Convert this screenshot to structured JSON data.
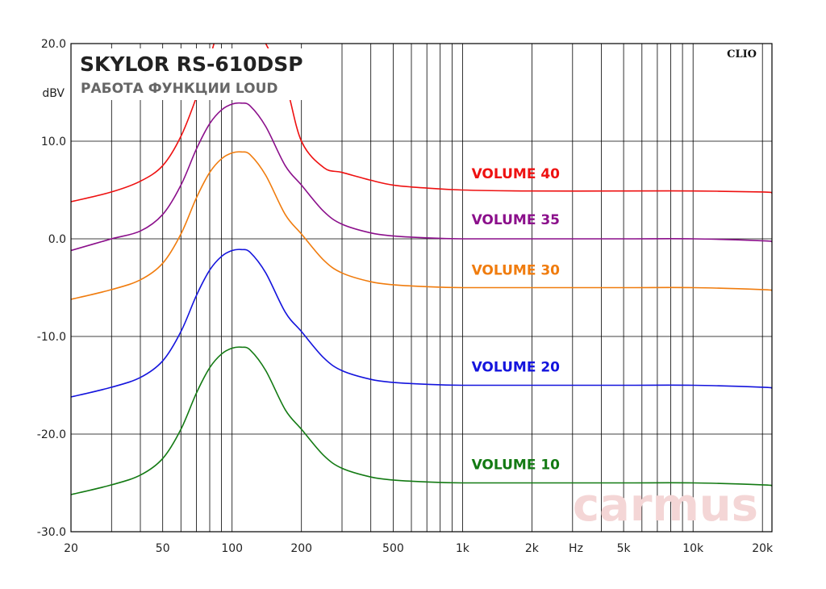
{
  "chart_data": {
    "type": "line",
    "title": "SKYLOR RS-610DSP",
    "subtitle": "РАБОТА ФУНКЦИИ LOUD",
    "badge": "CLIO",
    "watermark": "carmus",
    "ylabel": "dBV",
    "xunit_label": "Hz",
    "xscale": "log",
    "xlim": [
      20,
      22000
    ],
    "ylim": [
      -30,
      20
    ],
    "grid": true,
    "y_ticks": [
      {
        "value": 20,
        "label": "20.0"
      },
      {
        "value": 10,
        "label": "10.0"
      },
      {
        "value": 0,
        "label": "0.0"
      },
      {
        "value": -10,
        "label": "-10.0"
      },
      {
        "value": -20,
        "label": "-20.0"
      },
      {
        "value": -30,
        "label": "-30.0"
      }
    ],
    "x_ticks": [
      {
        "value": 20,
        "label": "20"
      },
      {
        "value": 50,
        "label": "50"
      },
      {
        "value": 100,
        "label": "100"
      },
      {
        "value": 200,
        "label": "200"
      },
      {
        "value": 500,
        "label": "500"
      },
      {
        "value": 1000,
        "label": "1k"
      },
      {
        "value": 2000,
        "label": "2k"
      },
      {
        "value": 5000,
        "label": "5k"
      },
      {
        "value": 10000,
        "label": "10k"
      },
      {
        "value": 20000,
        "label": "20k"
      }
    ],
    "x_minor_grid": [
      30,
      40,
      50,
      60,
      70,
      80,
      90,
      100,
      200,
      300,
      400,
      500,
      600,
      700,
      800,
      900,
      1000,
      2000,
      3000,
      4000,
      5000,
      6000,
      7000,
      8000,
      9000,
      10000,
      20000
    ],
    "series": [
      {
        "name": "VOLUME 40",
        "color": "#ee1111",
        "x": [
          20,
          30,
          40,
          50,
          60,
          70,
          80,
          90,
          100,
          110,
          120,
          140,
          170,
          200,
          250,
          300,
          400,
          500,
          700,
          1000,
          2000,
          5000,
          10000,
          20000,
          22000
        ],
        "y": [
          3.8,
          4.8,
          5.9,
          7.5,
          10.5,
          14.5,
          18.5,
          22.5,
          23.8,
          23.8,
          23.5,
          20.0,
          16.0,
          10.0,
          7.3,
          6.8,
          6.0,
          5.5,
          5.2,
          5.0,
          4.9,
          4.9,
          4.9,
          4.8,
          4.7
        ]
      },
      {
        "name": "VOLUME 35",
        "color": "#8b0f8b",
        "x": [
          20,
          30,
          40,
          50,
          60,
          70,
          80,
          90,
          100,
          110,
          120,
          140,
          170,
          200,
          250,
          300,
          400,
          500,
          700,
          1000,
          2000,
          5000,
          10000,
          20000,
          22000
        ],
        "y": [
          -1.2,
          0.0,
          0.8,
          2.5,
          5.5,
          9.2,
          11.8,
          13.2,
          13.8,
          13.9,
          13.6,
          11.5,
          7.5,
          5.5,
          2.8,
          1.5,
          0.6,
          0.3,
          0.1,
          0.0,
          0.0,
          0.0,
          0.0,
          -0.2,
          -0.3
        ]
      },
      {
        "name": "VOLUME 30",
        "color": "#f07c0e",
        "x": [
          20,
          30,
          40,
          50,
          60,
          70,
          80,
          90,
          100,
          110,
          120,
          140,
          170,
          200,
          250,
          300,
          400,
          500,
          700,
          1000,
          2000,
          5000,
          10000,
          20000,
          22000
        ],
        "y": [
          -6.2,
          -5.2,
          -4.2,
          -2.5,
          0.5,
          4.2,
          6.8,
          8.2,
          8.8,
          8.9,
          8.6,
          6.5,
          2.5,
          0.5,
          -2.2,
          -3.5,
          -4.4,
          -4.7,
          -4.9,
          -5.0,
          -5.0,
          -5.0,
          -5.0,
          -5.2,
          -5.3
        ]
      },
      {
        "name": "VOLUME 20",
        "color": "#1414dd",
        "x": [
          20,
          30,
          40,
          50,
          60,
          70,
          80,
          90,
          100,
          110,
          120,
          140,
          170,
          200,
          250,
          300,
          400,
          500,
          700,
          1000,
          2000,
          5000,
          10000,
          20000,
          22000
        ],
        "y": [
          -16.2,
          -15.2,
          -14.2,
          -12.5,
          -9.5,
          -5.8,
          -3.2,
          -1.8,
          -1.2,
          -1.1,
          -1.4,
          -3.5,
          -7.5,
          -9.5,
          -12.2,
          -13.5,
          -14.4,
          -14.7,
          -14.9,
          -15.0,
          -15.0,
          -15.0,
          -15.0,
          -15.2,
          -15.3
        ]
      },
      {
        "name": "VOLUME 10",
        "color": "#137a13",
        "x": [
          20,
          30,
          40,
          50,
          60,
          70,
          80,
          90,
          100,
          110,
          120,
          140,
          170,
          200,
          250,
          300,
          400,
          500,
          700,
          1000,
          2000,
          5000,
          10000,
          20000,
          22000
        ],
        "y": [
          -26.2,
          -25.2,
          -24.2,
          -22.5,
          -19.5,
          -15.8,
          -13.2,
          -11.8,
          -11.2,
          -11.1,
          -11.4,
          -13.5,
          -17.5,
          -19.5,
          -22.2,
          -23.5,
          -24.4,
          -24.7,
          -24.9,
          -25.0,
          -25.0,
          -25.0,
          -25.0,
          -25.2,
          -25.3
        ]
      }
    ],
    "series_labels": [
      {
        "text": "VOLUME 40",
        "color": "#ee1111",
        "x": 1700,
        "y": 6.7
      },
      {
        "text": "VOLUME 35",
        "color": "#8b0f8b",
        "x": 1700,
        "y": 2.0
      },
      {
        "text": "VOLUME 30",
        "color": "#f07c0e",
        "x": 1700,
        "y": -3.2
      },
      {
        "text": "VOLUME 20",
        "color": "#1414dd",
        "x": 1700,
        "y": -13.1
      },
      {
        "text": "VOLUME 10",
        "color": "#137a13",
        "x": 1700,
        "y": -23.1
      }
    ]
  }
}
